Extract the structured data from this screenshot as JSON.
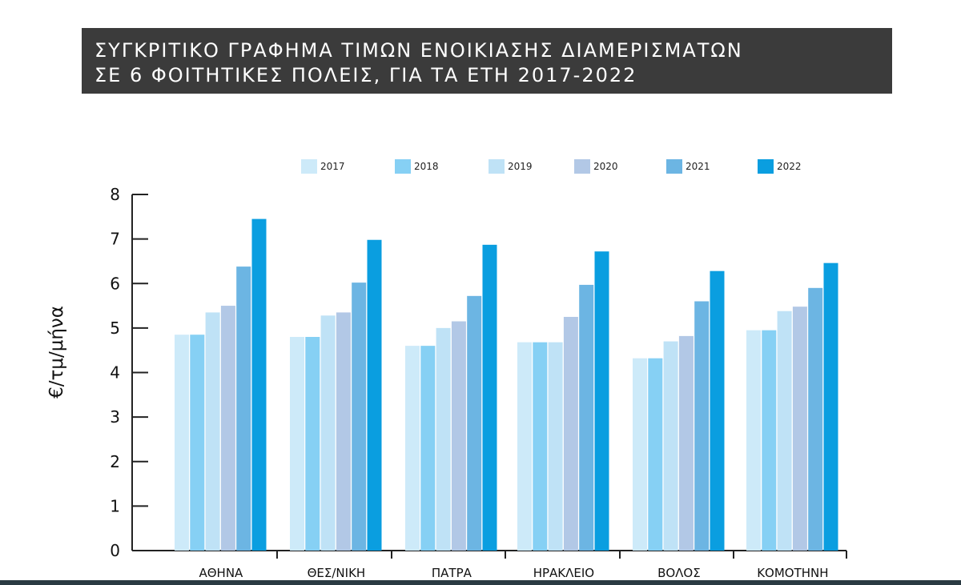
{
  "title": {
    "line1": "ΣΥΓΚΡΙΤΙΚΟ ΓΡΑΦΗΜΑ ΤΙΜΩΝ ΕΝΟΙΚΙΑΣΗΣ ΔΙΑΜΕΡΙΣΜΑΤΩΝ",
    "line2": "ΣΕ 6 ΦΟΙΤΗΤΙΚΕΣ ΠΟΛΕΙΣ, ΓΙΑ ΤΑ ΕΤΗ 2017-2022"
  },
  "chart_data": {
    "type": "bar",
    "title": "ΣΥΓΚΡΙΤΙΚΟ ΓΡΑΦΗΜΑ ΤΙΜΩΝ ΕΝΟΙΚΙΑΣΗΣ ΔΙΑΜΕΡΙΣΜΑΤΩΝ ΣΕ 6 ΦΟΙΤΗΤΙΚΕΣ ΠΟΛΕΙΣ, ΓΙΑ ΤΑ ΕΤΗ 2017-2022",
    "xlabel": "",
    "ylabel": "€/τμ/μήνα",
    "ylim": [
      0,
      8
    ],
    "yticks": [
      0,
      1,
      2,
      3,
      4,
      5,
      6,
      7,
      8
    ],
    "grid": false,
    "legend_position": "top",
    "categories": [
      "ΑΘΗΝΑ",
      "ΘΕΣ/ΝΙΚΗ",
      "ΠΑΤΡΑ",
      "ΗΡΑΚΛΕΙΟ",
      "ΒΟΛΟΣ",
      "ΚΟΜΟΤΗΝΗ"
    ],
    "series": [
      {
        "name": "2017",
        "color": "#cdeaf9",
        "values": [
          4.85,
          4.8,
          4.6,
          4.68,
          4.32,
          4.95
        ]
      },
      {
        "name": "2018",
        "color": "#86d0f4",
        "values": [
          4.85,
          4.8,
          4.6,
          4.68,
          4.32,
          4.95
        ]
      },
      {
        "name": "2019",
        "color": "#bfe2f6",
        "values": [
          5.35,
          5.28,
          5.0,
          4.68,
          4.7,
          5.38
        ]
      },
      {
        "name": "2020",
        "color": "#b2c8e6",
        "values": [
          5.5,
          5.35,
          5.15,
          5.25,
          4.82,
          5.48
        ]
      },
      {
        "name": "2021",
        "color": "#6cb5e3",
        "values": [
          6.38,
          6.02,
          5.72,
          5.97,
          5.6,
          5.9
        ]
      },
      {
        "name": "2022",
        "color": "#0a9ee0",
        "values": [
          7.45,
          6.98,
          6.87,
          6.72,
          6.28,
          6.46
        ]
      }
    ]
  }
}
